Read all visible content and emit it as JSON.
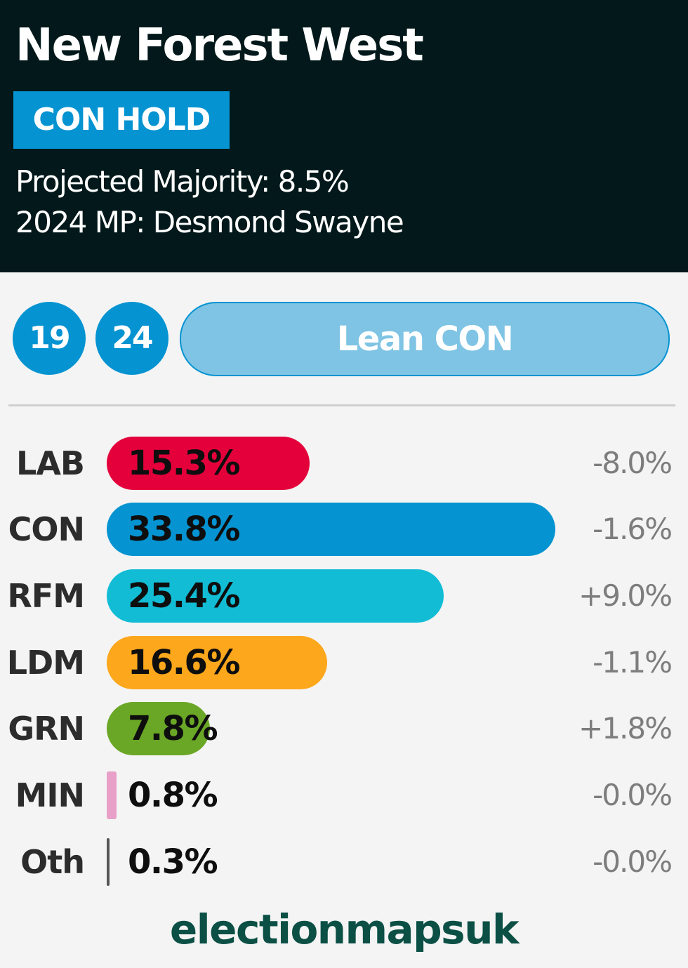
{
  "header": {
    "title": "New Forest West",
    "status_badge": "CON HOLD",
    "projected_majority": "Projected Majority: 8.5%",
    "mp": "2024 MP: Desmond Swayne"
  },
  "history": {
    "badges": [
      "19",
      "24"
    ],
    "rating": "Lean CON"
  },
  "colors": {
    "header_bg": "#02181a",
    "con": "#0593d1",
    "lab": "#e4003b",
    "rfm": "#12bcd5",
    "ldm": "#fca71c",
    "grn": "#6aa726",
    "min": "#e8a0c8",
    "oth": "#555555",
    "rating_bg": "#7fc4e4",
    "brand": "#0b4f45"
  },
  "results": [
    {
      "party": "LAB",
      "share": 15.3,
      "share_label": "15.3%",
      "change": "-8.0%",
      "color": "#e4003b"
    },
    {
      "party": "CON",
      "share": 33.8,
      "share_label": "33.8%",
      "change": "-1.6%",
      "color": "#0593d1"
    },
    {
      "party": "RFM",
      "share": 25.4,
      "share_label": "25.4%",
      "change": "+9.0%",
      "color": "#12bcd5"
    },
    {
      "party": "LDM",
      "share": 16.6,
      "share_label": "16.6%",
      "change": "-1.1%",
      "color": "#fca71c"
    },
    {
      "party": "GRN",
      "share": 7.8,
      "share_label": "7.8%",
      "change": "+1.8%",
      "color": "#6aa726"
    },
    {
      "party": "MIN",
      "share": 0.8,
      "share_label": "0.8%",
      "change": "-0.0%",
      "color": "#e8a0c8"
    },
    {
      "party": "Oth",
      "share": 0.3,
      "share_label": "0.3%",
      "change": "-0.0%",
      "color": "#555555"
    }
  ],
  "footer": {
    "brand": "electionmapsuk"
  }
}
